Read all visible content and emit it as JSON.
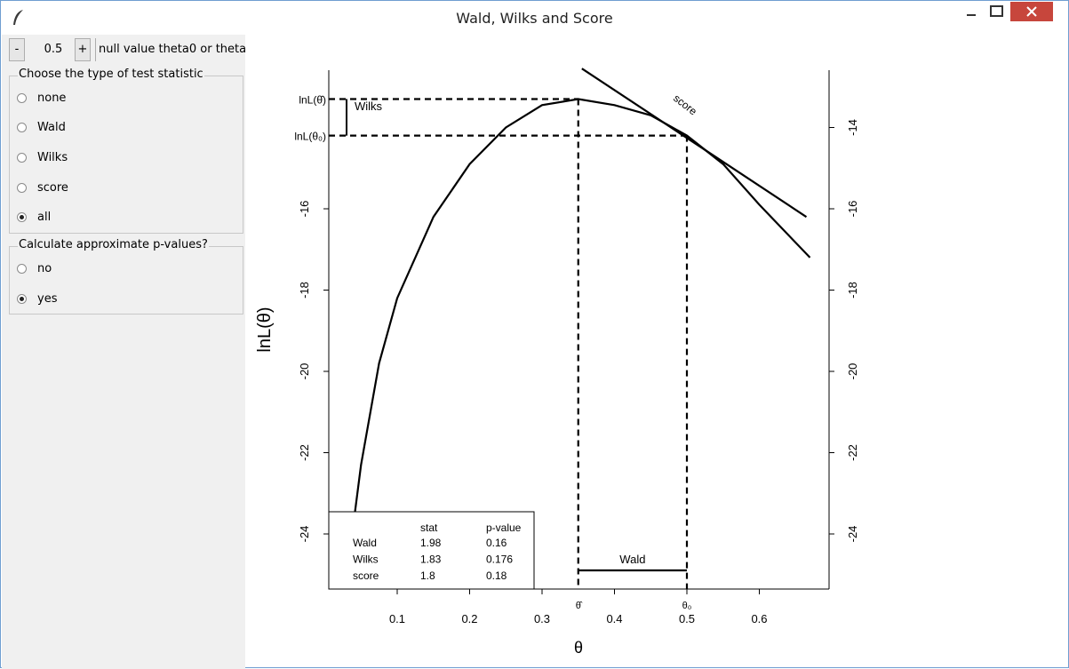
{
  "window": {
    "title": "Wald, Wilks and Score"
  },
  "controls": {
    "minus_label": "-",
    "plus_label": "+",
    "theta_value": "0.5",
    "null_label": "null value theta0 or theta",
    "test_group_label": "Choose the type of test statistic",
    "test_options": [
      "none",
      "Wald",
      "Wilks",
      "score",
      "all"
    ],
    "test_selected": "all",
    "pvalue_group_label": "Calculate approximate p-values?",
    "pvalue_options": [
      "no",
      "yes"
    ],
    "pvalue_selected": "yes"
  },
  "chart_data": {
    "type": "line",
    "xlabel": "θ",
    "ylabel": "lnL(θ)",
    "x_ticks": [
      "0.1",
      "0.2",
      "0.3",
      "0.4",
      "0.5",
      "0.6"
    ],
    "y_ticks": [
      "-16",
      "-18",
      "-20",
      "-22",
      "-24"
    ],
    "right_y_ticks": [
      "-14",
      "-16",
      "-18",
      "-20",
      "-22",
      "-24"
    ],
    "x_range": [
      0.0,
      0.7
    ],
    "y_range": [
      -25.5,
      -12.5
    ],
    "theta_hat": 0.35,
    "theta0": 0.5,
    "lnL_theta_hat": -13.3,
    "lnL_theta0": -14.2,
    "series": [
      {
        "values": [
          [
            0.033,
            -25.0
          ],
          [
            0.037,
            -24.1
          ],
          [
            0.05,
            -22.3
          ],
          [
            0.075,
            -19.8
          ],
          [
            0.1,
            -18.2
          ],
          [
            0.15,
            -16.2
          ],
          [
            0.2,
            -14.9
          ],
          [
            0.25,
            -14.0
          ],
          [
            0.3,
            -13.45
          ],
          [
            0.35,
            -13.3
          ],
          [
            0.4,
            -13.45
          ],
          [
            0.45,
            -13.7
          ],
          [
            0.5,
            -14.2
          ],
          [
            0.55,
            -14.9
          ],
          [
            0.6,
            -15.9
          ],
          [
            0.67,
            -17.2
          ]
        ]
      }
    ],
    "score_line": [
      [
        0.355,
        -12.55
      ],
      [
        0.665,
        -16.2
      ]
    ],
    "annotations": {
      "lnL_hat_label": "lnL(θ̂)",
      "lnL_0_label": "lnL(θ₀)",
      "wilks_label": "Wilks",
      "wald_label": "Wald",
      "score_label": "score",
      "theta_hat_tick": "θ̂",
      "theta0_tick": "θ₀"
    },
    "table": {
      "columns": [
        "",
        "stat",
        "p-value"
      ],
      "rows": [
        {
          "name": "Wald",
          "stat": "1.98",
          "p": "0.16"
        },
        {
          "name": "Wilks",
          "stat": "1.83",
          "p": "0.176"
        },
        {
          "name": "score",
          "stat": "1.8",
          "p": "0.18"
        }
      ]
    }
  }
}
